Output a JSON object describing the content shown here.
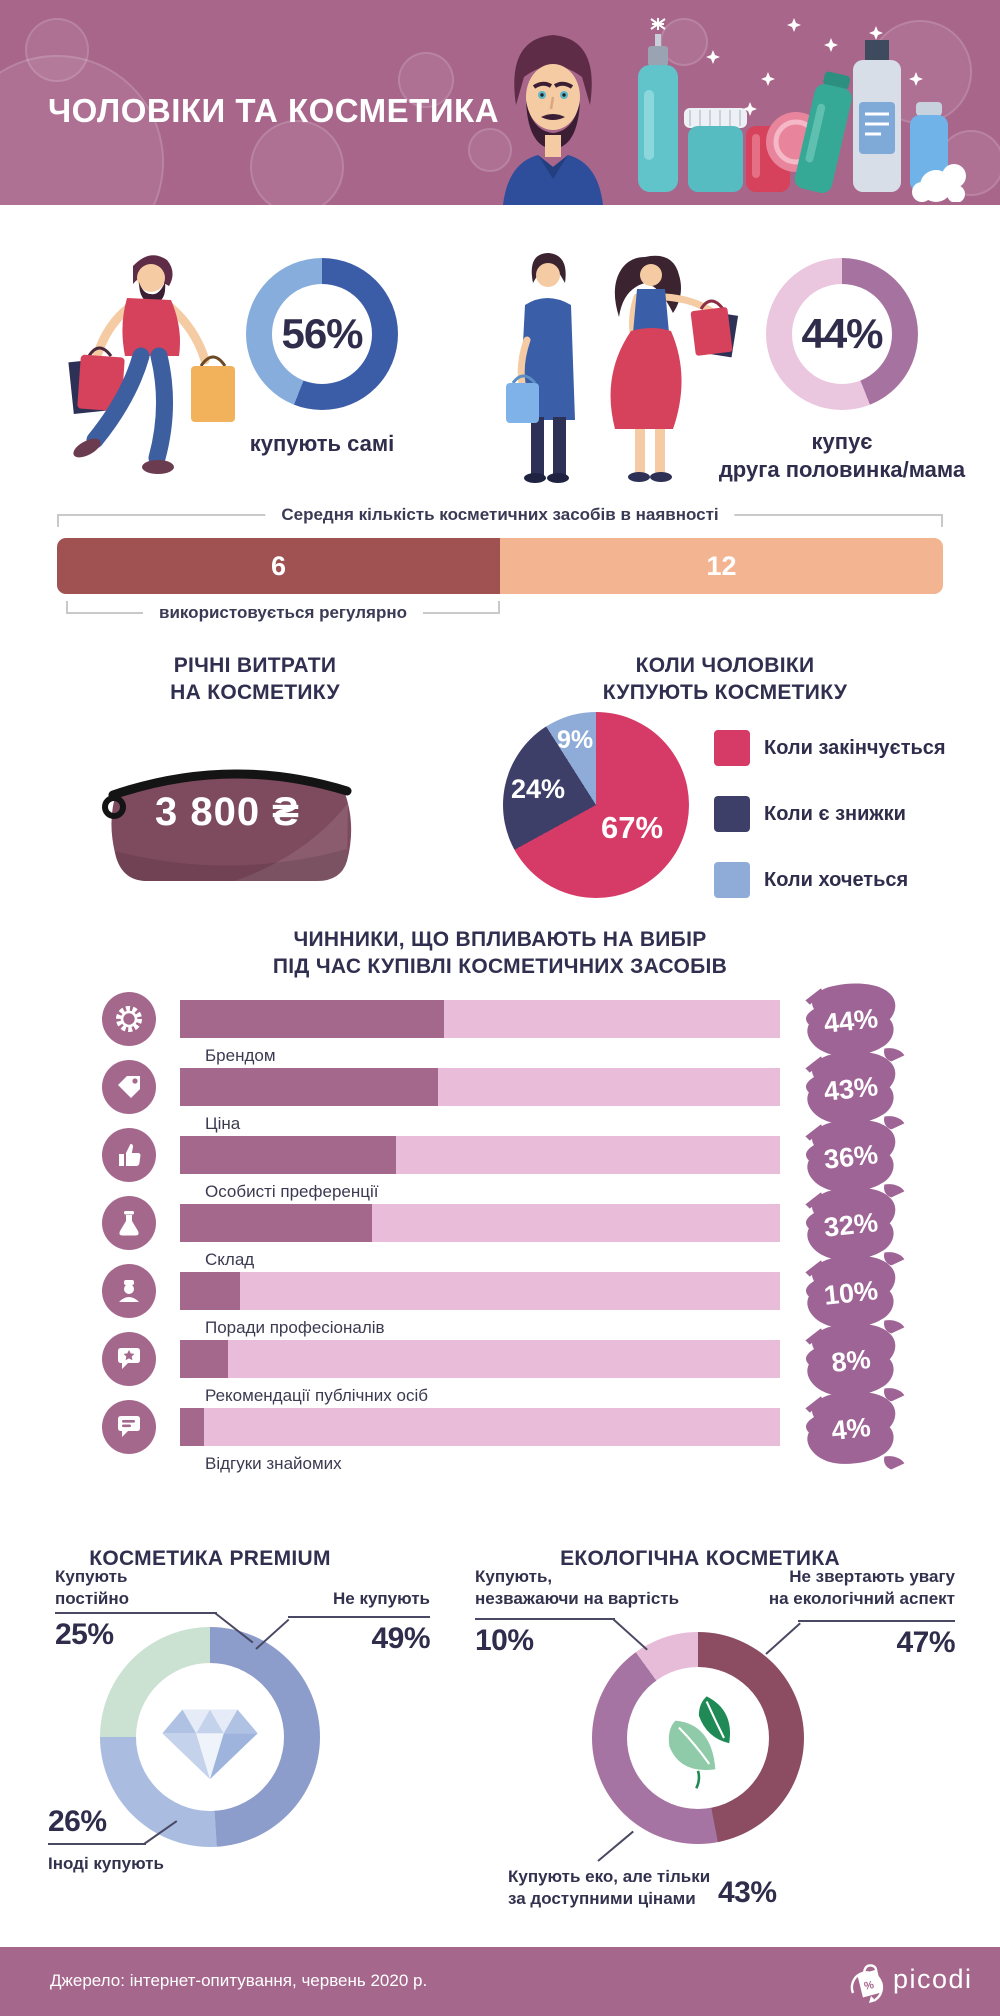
{
  "header": {
    "title": "ЧОЛОВІКИ ТА КОСМЕТИКА",
    "bg_color": "#A8668B",
    "illustrations": [
      "man-portrait-illustration",
      "cosmetics-set-illustration",
      "bubbles",
      "sparkles"
    ]
  },
  "who_buys": {
    "self": {
      "pct": "56%",
      "value": 56,
      "caption": "купують самі",
      "illustration": "man-shopping-illustration",
      "segments": [
        {
          "value": 56,
          "color": "#3B5CA7"
        },
        {
          "value": 44,
          "color": "#86ADDB"
        }
      ]
    },
    "partner": {
      "pct": "44%",
      "value": 44,
      "caption_line1": "купує",
      "caption_line2": "друга половинка/мама",
      "illustration": "women-shopping-illustration",
      "segments": [
        {
          "value": 44,
          "color": "#A673A1"
        },
        {
          "value": 56,
          "color": "#EBC6DF"
        }
      ]
    }
  },
  "avg_products": {
    "top_label": "Середня кількість косметичних засобів в наявності",
    "used_value": "6",
    "used_width_pct": 50,
    "used_color": "#A05252",
    "total_value": "12",
    "total_color": "#F3B591",
    "bottom_label": "використовується регулярно"
  },
  "annual_spend": {
    "title_line1": "РІЧНІ ВИТРАТИ",
    "title_line2": "НА КОСМЕТИКУ",
    "amount": "3 800 ₴",
    "bag_color": "#7D4A5E"
  },
  "when_buy": {
    "title_line1": "КОЛИ ЧОЛОВІКИ",
    "title_line2": "КУПУЮТЬ КОСМЕТИКУ",
    "segments": [
      {
        "label": "Коли закінчується",
        "pct": "67%",
        "value": 67,
        "color": "#D63A66"
      },
      {
        "label": "Коли є знижки",
        "pct": "24%",
        "value": 24,
        "color": "#3D3F68"
      },
      {
        "label": "Коли хочеться",
        "pct": "9%",
        "value": 9,
        "color": "#8FACD8"
      }
    ]
  },
  "factors": {
    "title_line1": "ЧИННИКИ, ЩО ВПЛИВАЮТЬ НА ВИБІР",
    "title_line2": "ПІД ЧАС КУПІВЛІ КОСМЕТИЧНИХ ЗАСОБІВ",
    "bar_bg_color": "#E9BCD9",
    "bar_fill_color": "#A5688D",
    "icon_bg_color": "#A5688D",
    "badge_color": "#9D6495",
    "rows": [
      {
        "label": "Брендом",
        "pct": "44%",
        "value": 44,
        "icon": "award-badge-icon"
      },
      {
        "label": "Ціна",
        "pct": "43%",
        "value": 43,
        "icon": "price-tag-icon"
      },
      {
        "label": "Особисті преференції",
        "pct": "36%",
        "value": 36,
        "icon": "thumbs-up-icon"
      },
      {
        "label": "Склад",
        "pct": "32%",
        "value": 32,
        "icon": "flask-icon"
      },
      {
        "label": "Поради професіоналів",
        "pct": "10%",
        "value": 10,
        "icon": "professional-person-icon"
      },
      {
        "label": "Рекомендації публічних осіб",
        "pct": "8%",
        "value": 8,
        "icon": "star-speech-bubble-icon"
      },
      {
        "label": "Відгуки знайомих",
        "pct": "4%",
        "value": 4,
        "icon": "chat-bubble-icon"
      }
    ]
  },
  "premium": {
    "title": "КОСМЕТИКА PREMIUM",
    "center_icon": "diamond-icon",
    "segments": [
      {
        "label": "Не купують",
        "pct": "49%",
        "value": 49,
        "color": "#8C9CCB"
      },
      {
        "label": "Іноді купують",
        "pct": "26%",
        "value": 26,
        "color": "#AABDE1"
      },
      {
        "label": "Купують постійно",
        "pct": "25%",
        "value": 25,
        "color": "#CBE2D2"
      }
    ],
    "callout_regular_line1": "Купують",
    "callout_regular_line2": "постійно",
    "callout_regular_pct": "25%",
    "callout_never": "Не купують",
    "callout_never_pct": "49%",
    "callout_sometimes": "Іноді купують",
    "callout_sometimes_pct": "26%"
  },
  "eco": {
    "title": "ЕКОЛОГІЧНА КОСМЕТИКА",
    "center_icon": "leaves-icon",
    "segments": [
      {
        "label": "Не звертають увагу на екологічний аспект",
        "pct": "47%",
        "value": 47,
        "color": "#8C4D63"
      },
      {
        "label": "Купують еко, але тільки за доступними цінами",
        "pct": "43%",
        "value": 43,
        "color": "#A674A2"
      },
      {
        "label": "Купують, незважаючи на вартість",
        "pct": "10%",
        "value": 10,
        "color": "#E7BCD9"
      }
    ],
    "callout_regardless_line1": "Купують,",
    "callout_regardless_line2": "незважаючи на вартість",
    "callout_regardless_pct": "10%",
    "callout_ignore_line1": "Не звертають увагу",
    "callout_ignore_line2": "на екологічний аспект",
    "callout_ignore_pct": "47%",
    "callout_affordable_line1": "Купують еко, але тільки",
    "callout_affordable_line2": "за доступними цінами",
    "callout_affordable_pct": "43%"
  },
  "footer": {
    "source": "Джерело: інтернет-опитування, червень 2020 р.",
    "brand": "picodi",
    "bg_color": "#A5678C",
    "logo_icon": "picodi-bag-icon"
  },
  "chart_data": [
    {
      "type": "pie",
      "title": "Хто купує косметику чоловікам",
      "labels": [
        "купують самі",
        "купує друга половинка/мама"
      ],
      "values": [
        56,
        44
      ],
      "colors": [
        "#3B5CA7",
        "#A673A1"
      ]
    },
    {
      "type": "bar",
      "title": "Середня кількість косметичних засобів в наявності",
      "categories": [
        "використовується регулярно",
        "в наявності"
      ],
      "values": [
        6,
        12
      ],
      "colors": [
        "#A05252",
        "#F3B591"
      ]
    },
    {
      "type": "table",
      "title": "Річні витрати на косметику",
      "values": [
        [
          "3 800 ₴"
        ]
      ]
    },
    {
      "type": "pie",
      "title": "Коли чоловіки купують косметику",
      "labels": [
        "Коли закінчується",
        "Коли є знижки",
        "Коли хочеться"
      ],
      "values": [
        67,
        24,
        9
      ],
      "colors": [
        "#D63A66",
        "#3D3F68",
        "#8FACD8"
      ],
      "legend_position": "right"
    },
    {
      "type": "bar",
      "title": "Чинники, що впливають на вибір під час купівлі косметичних засобів",
      "categories": [
        "Брендом",
        "Ціна",
        "Особисті преференції",
        "Склад",
        "Поради професіоналів",
        "Рекомендації публічних осіб",
        "Відгуки знайомих"
      ],
      "values": [
        44,
        43,
        36,
        32,
        10,
        8,
        4
      ],
      "orientation": "horizontal",
      "xlim": [
        0,
        100
      ],
      "unit": "%"
    },
    {
      "type": "pie",
      "title": "Косметика Premium",
      "labels": [
        "Не купують",
        "Іноді купують",
        "Купують постійно"
      ],
      "values": [
        49,
        26,
        25
      ],
      "colors": [
        "#8C9CCB",
        "#AABDE1",
        "#CBE2D2"
      ]
    },
    {
      "type": "pie",
      "title": "Екологічна косметика",
      "labels": [
        "Не звертають увагу на екологічний аспект",
        "Купують еко, але тільки за доступними цінами",
        "Купують, незважаючи на вартість"
      ],
      "values": [
        47,
        43,
        10
      ],
      "colors": [
        "#8C4D63",
        "#A674A2",
        "#E7BCD9"
      ]
    }
  ]
}
